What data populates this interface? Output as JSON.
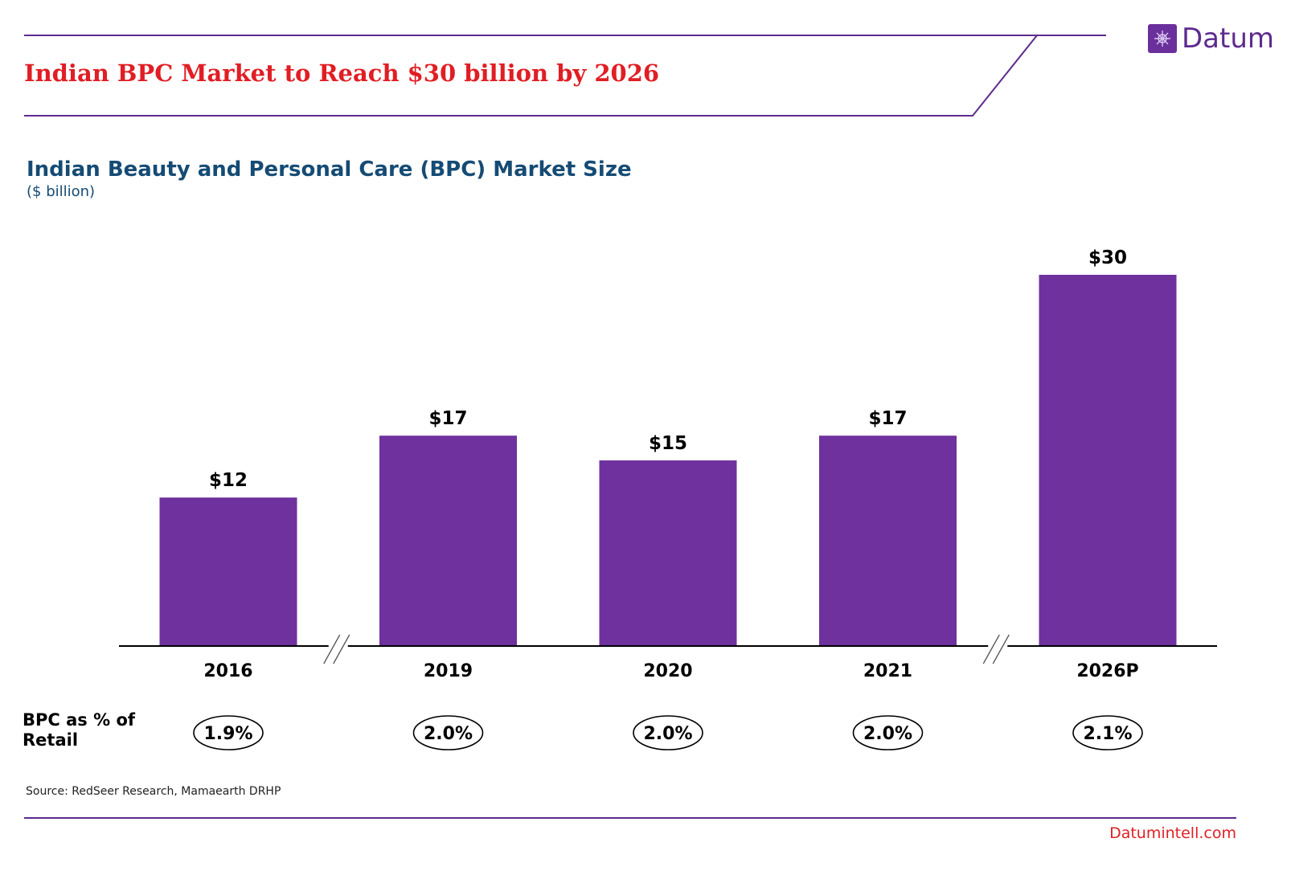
{
  "header": {
    "title": "Indian BPC Market to Reach $30 billion by 2026",
    "brand": "Datum",
    "brand_icon": "datum-logo-icon",
    "accent_color": "#5e2b8e",
    "title_color": "#e01e24"
  },
  "chart_data": {
    "type": "bar",
    "title": "Indian Beauty and Personal Care (BPC) Market Size",
    "unit": "($ billion)",
    "categories": [
      "2016",
      "2019",
      "2020",
      "2021",
      "2026P"
    ],
    "values": [
      12,
      17,
      15,
      17,
      30
    ],
    "value_labels": [
      "$12",
      "$17",
      "$15",
      "$17",
      "$30"
    ],
    "axis_breaks_after": [
      "2016",
      "2021"
    ],
    "bar_color": "#6f319d",
    "ylim": [
      0,
      30
    ],
    "grid": false,
    "secondary_row": {
      "label": "BPC as % of Retail",
      "values": [
        "1.9%",
        "2.0%",
        "2.0%",
        "2.0%",
        "2.1%"
      ]
    }
  },
  "footer": {
    "source": "Source: RedSeer Research, Mamaearth DRHP",
    "url": "Datumintell.com"
  }
}
